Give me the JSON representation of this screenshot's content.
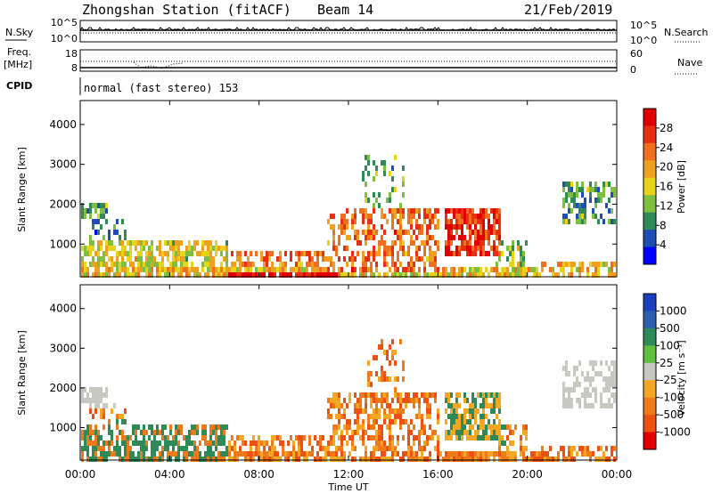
{
  "header": {
    "station": "Zhongshan Station (fitACF)",
    "beam": "Beam 14",
    "date": "21/Feb/2019"
  },
  "top_panels": {
    "nsky_label": "N.Sky",
    "nsearch_label": "N.Search",
    "noise_ticks": [
      "10^5",
      "10^0"
    ],
    "freq_label_1": "Freq.",
    "freq_label_2": "[MHz]",
    "freq_ticks": [
      "18",
      "8"
    ],
    "nave_label": "Nave",
    "nave_ticks": [
      "60",
      "0"
    ],
    "cpid_label": "CPID",
    "cpid_text": "normal (fast stereo) 153"
  },
  "x_axis": {
    "label": "Time UT",
    "ticks": [
      "00:00",
      "04:00",
      "08:00",
      "12:00",
      "16:00",
      "20:00",
      "00:00"
    ]
  },
  "colors": {
    "power_scale": [
      "#0000ff",
      "#1e4db3",
      "#2e8b57",
      "#7fbf3f",
      "#e6d31a",
      "#f0a020",
      "#f07020",
      "#e83010",
      "#e00000"
    ],
    "velocity_scale": [
      "#1a3fbf",
      "#2a5faf",
      "#2e8b57",
      "#5fbf3f",
      "#c8c8c0",
      "#f5a623",
      "#f07a1a",
      "#ee5010",
      "#e00000"
    ]
  },
  "chart_data": [
    {
      "type": "heatmap",
      "quantity": "power",
      "ylabel": "Slant Range [km]",
      "yticks": [
        1000,
        2000,
        3000,
        4000
      ],
      "ylim": [
        180,
        4600
      ],
      "xlim": [
        0,
        24
      ],
      "colorbar": {
        "label": "Power [dB]",
        "ticks": [
          "4",
          "8",
          "12",
          "16",
          "20",
          "24",
          "28"
        ],
        "range": [
          0,
          30
        ]
      }
    },
    {
      "type": "heatmap",
      "quantity": "velocity",
      "ylabel": "Slant Range [km]",
      "yticks": [
        1000,
        2000,
        3000,
        4000
      ],
      "ylim": [
        180,
        4600
      ],
      "xlim": [
        0,
        24
      ],
      "colorbar": {
        "label": "Velocity [m s⁻¹]",
        "ticks": [
          "1000",
          "500",
          "100",
          "25",
          "-25",
          "-100",
          "-500",
          "-1000"
        ]
      }
    }
  ]
}
